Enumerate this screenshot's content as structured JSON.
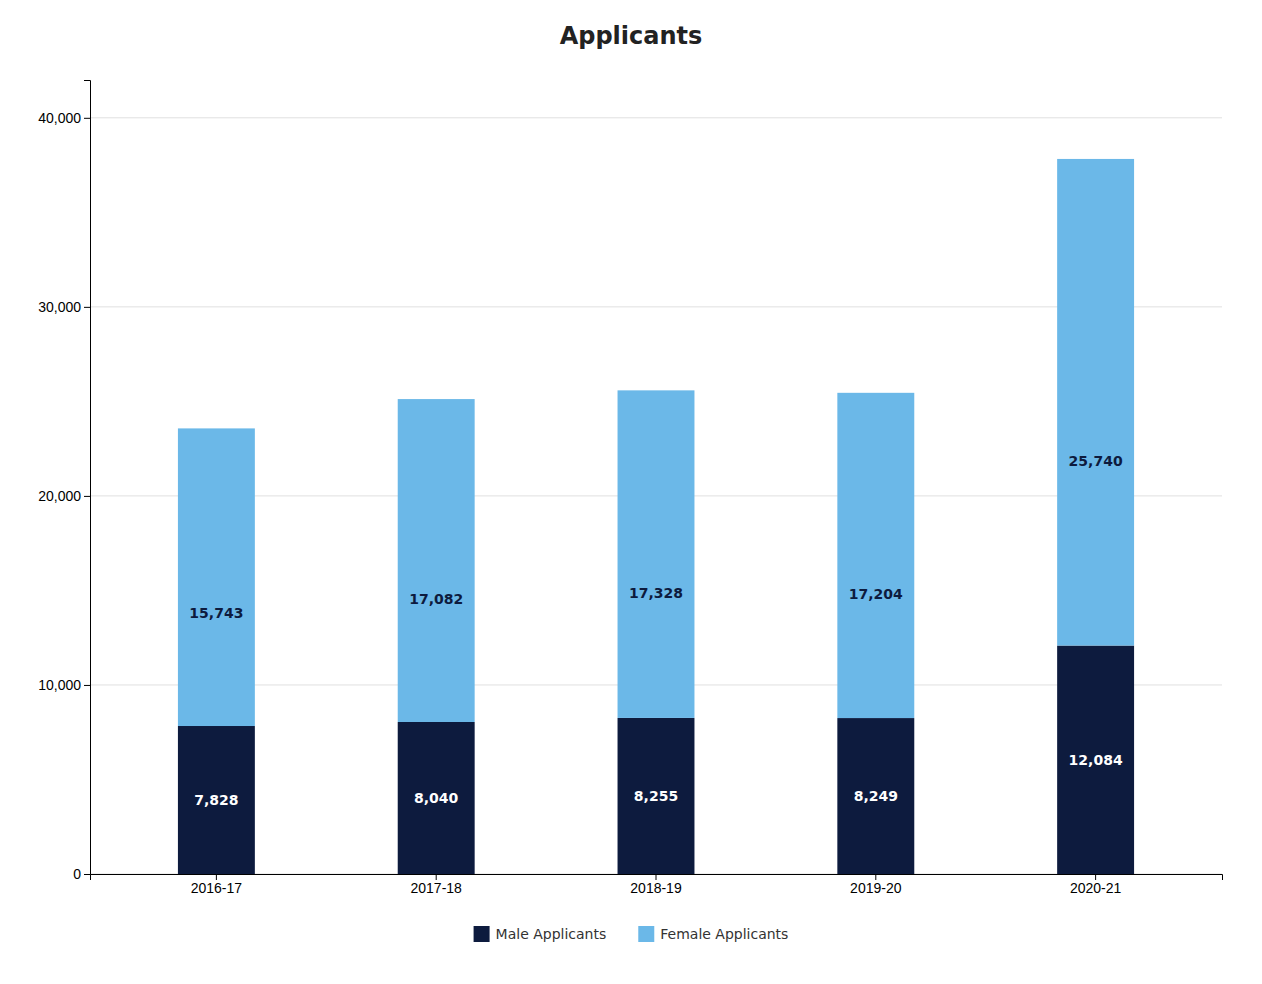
{
  "chart_data": {
    "type": "bar",
    "title": "Applicants",
    "categories": [
      "2016-17",
      "2017-18",
      "2018-19",
      "2019-20",
      "2020-21"
    ],
    "series": [
      {
        "name": "Male Applicants",
        "color": "#0d1b3e",
        "values": [
          7828,
          8040,
          8255,
          8249,
          12084
        ],
        "value_labels": [
          "7,828",
          "8,040",
          "8,255",
          "8,249",
          "12,084"
        ]
      },
      {
        "name": "Female Applicants",
        "color": "#6bb8e8",
        "values": [
          15743,
          17082,
          17328,
          17204,
          25740
        ],
        "value_labels": [
          "15,743",
          "17,082",
          "17,328",
          "17,204",
          "25,740"
        ]
      }
    ],
    "stacked": true,
    "data_labels": true,
    "ylim": [
      0,
      42000
    ],
    "yticks": [
      0,
      {
        "value": 10000,
        "label": "10,000"
      },
      {
        "value": 20000,
        "label": "20,000"
      },
      {
        "value": 30000,
        "label": "30,000"
      },
      {
        "value": 40000,
        "label": "40,000"
      }
    ],
    "grid": true,
    "legend": "bottom"
  }
}
